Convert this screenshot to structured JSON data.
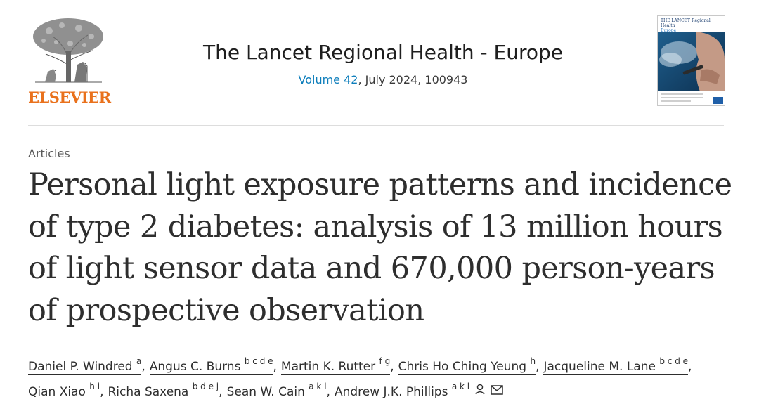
{
  "publisher": {
    "logo_text": "ELSEVIER"
  },
  "journal": {
    "title": "The Lancet Regional Health - Europe",
    "volume_link": "Volume 42",
    "issue_rest": ", July 2024, 100943",
    "cover_title": "THE LANCET Regional Health",
    "cover_subtitle": "Europe"
  },
  "article": {
    "section": "Articles",
    "title": "Personal light exposure patterns and incidence of type 2 diabetes: analysis of 13 million hours of light sensor data and 670,000 person-years of prospective observation"
  },
  "authors": [
    {
      "name": "Daniel P. Windred",
      "affil": "a"
    },
    {
      "name": "Angus C. Burns",
      "affil": "b c d e"
    },
    {
      "name": "Martin K. Rutter",
      "affil": "f g"
    },
    {
      "name": "Chris Ho Ching Yeung",
      "affil": "h"
    },
    {
      "name": "Jacqueline M. Lane",
      "affil": "b c d e"
    },
    {
      "name": "Qian Xiao",
      "affil": "h i"
    },
    {
      "name": "Richa Saxena",
      "affil": "b d e j"
    },
    {
      "name": "Sean W. Cain",
      "affil": "a k l"
    },
    {
      "name": "Andrew J.K. Phillips",
      "affil": "a k l"
    }
  ],
  "icons": {
    "person": "person-icon",
    "mail": "mail-icon"
  },
  "colors": {
    "brand_orange": "#e9711c",
    "link_blue": "#0c7dbb",
    "text": "#2e2e2e"
  }
}
